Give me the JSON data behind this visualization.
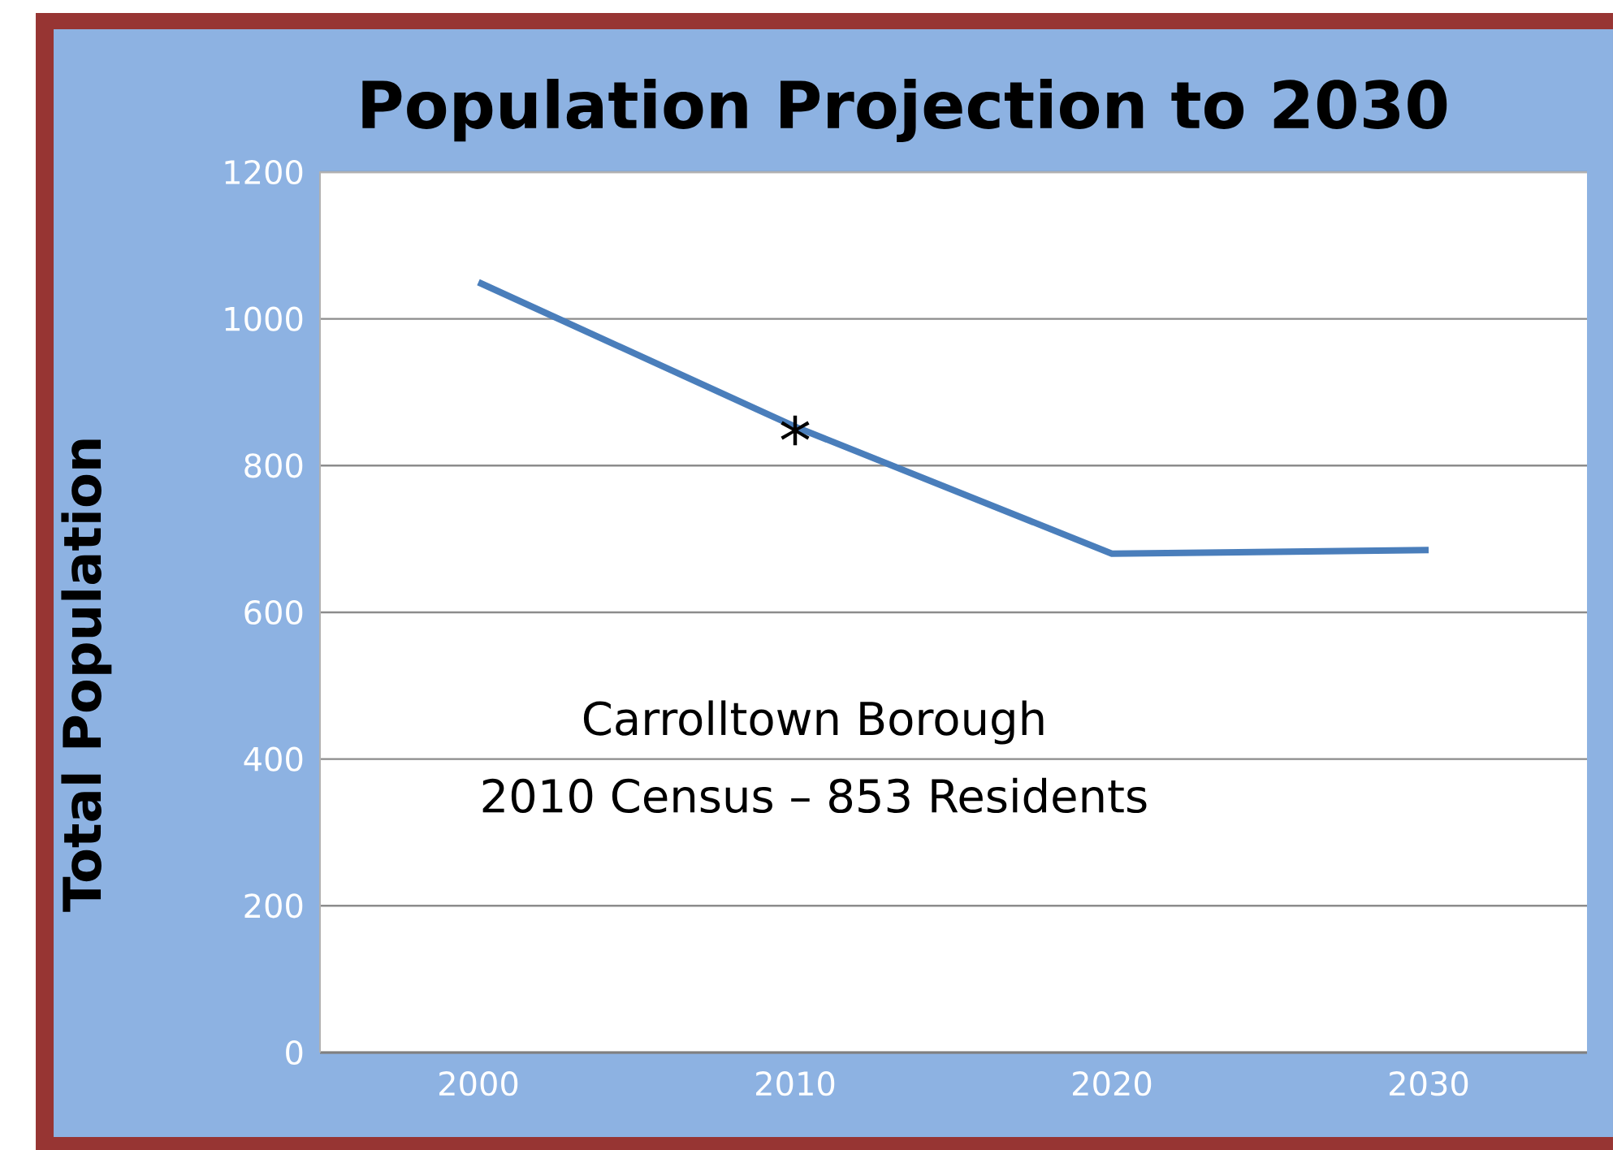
{
  "chart_data": {
    "type": "line",
    "title": "Population Projection to 2030",
    "ylabel": "Total Population",
    "categories": [
      "2000",
      "2010",
      "2020",
      "2030"
    ],
    "series": [
      {
        "color": "#4a7ebb",
        "values": [
          1050,
          853,
          680,
          685
        ]
      }
    ],
    "ylim": [
      0,
      1200
    ],
    "yticks": [
      0,
      200,
      400,
      600,
      800,
      1000,
      1200
    ],
    "grid": "y",
    "marker": "none",
    "line_style": "solid",
    "annotations": [
      {
        "text": "*",
        "x": "2010",
        "y": 853
      },
      "Carrolltown Borough",
      "2010 Census – 853 Residents"
    ]
  }
}
